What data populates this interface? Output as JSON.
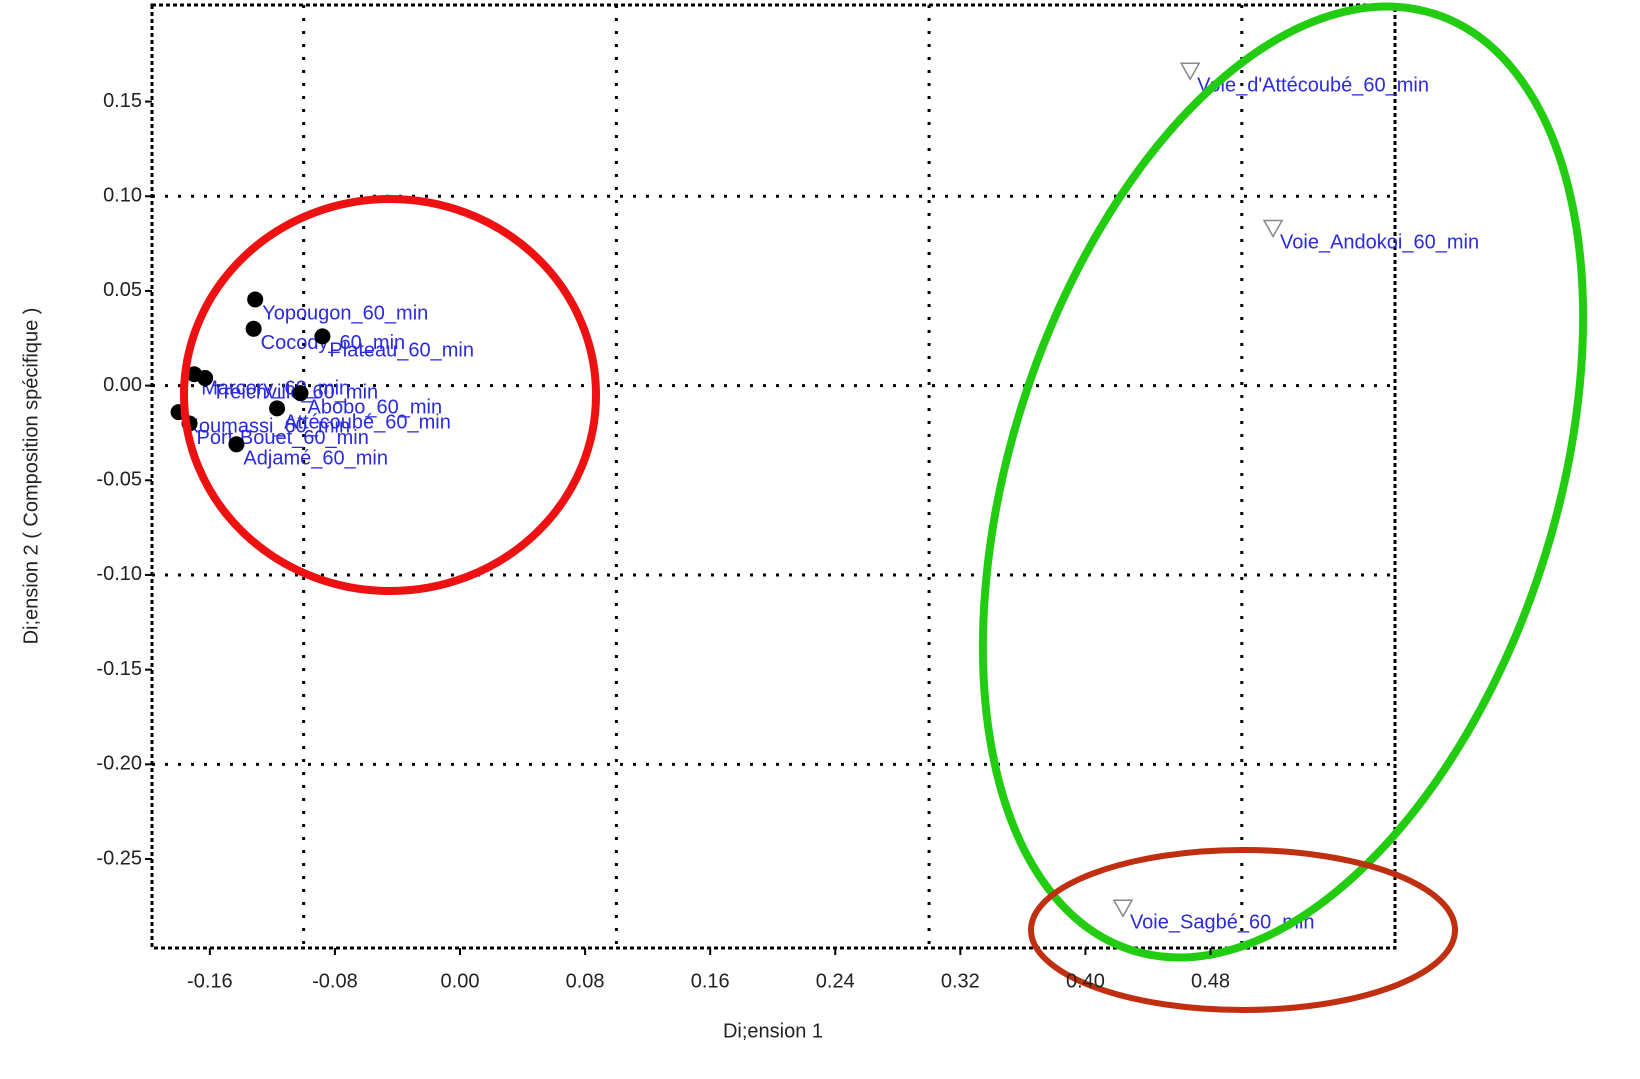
{
  "chart_data": {
    "type": "scatter",
    "xlabel": "Di;ension 1",
    "ylabel": "Di;ension 2 ( Composition spécifique )",
    "xlim": [
      -0.197,
      0.598
    ],
    "ylim": [
      -0.297,
      0.201
    ],
    "xticks": [
      -0.16,
      -0.08,
      {
        "value": 0,
        "label": "0.00"
      },
      0.08,
      0.16,
      0.24,
      0.32,
      {
        "value": 0.4,
        "label": "0.40"
      },
      0.48
    ],
    "yticks": [
      0.15,
      {
        "value": 0.1,
        "label": "0.10"
      },
      0.05,
      {
        "value": 0,
        "label": "0.00"
      },
      -0.05,
      {
        "value": -0.1,
        "label": "-0.10"
      },
      -0.15,
      {
        "value": -0.2,
        "label": "-0.20"
      },
      -0.25
    ],
    "xgrid": [
      -0.1,
      0.1,
      0.3,
      0.5
    ],
    "ygrid": [
      0.1,
      0,
      -0.1,
      -0.2
    ],
    "label_color": "#2a2ae0",
    "series": [
      {
        "marker": "circle",
        "color": "#000000",
        "x": [
          -0.131,
          -0.132,
          -0.088,
          -0.17,
          -0.163,
          -0.117,
          -0.102,
          -0.18,
          -0.173,
          -0.143
        ],
        "y": [
          0.0455,
          0.03,
          0.026,
          0.006,
          0.004,
          -0.012,
          -0.004,
          -0.014,
          -0.02,
          -0.031
        ],
        "labels": [
          "Yopougon_60_min",
          "Cocody_60_min",
          "Plateau_60_min",
          "Marcory_60_min",
          "Treichville_60_min",
          "Attécoubé_60_min",
          "Abobo_60_min",
          "Koumassi_60_min",
          "Port-Bouet_60_min",
          "Adjamé_60_min"
        ]
      },
      {
        "marker": "triangle-down",
        "color": "#888888",
        "x": [
          0.467,
          0.52,
          0.424
        ],
        "y": [
          0.166,
          0.083,
          -0.276
        ],
        "labels": [
          "Voie_d'Attécoubé_60_min",
          "Voie_Andokoi_60_min",
          "Voie_Sagbé_60_min"
        ]
      }
    ]
  }
}
